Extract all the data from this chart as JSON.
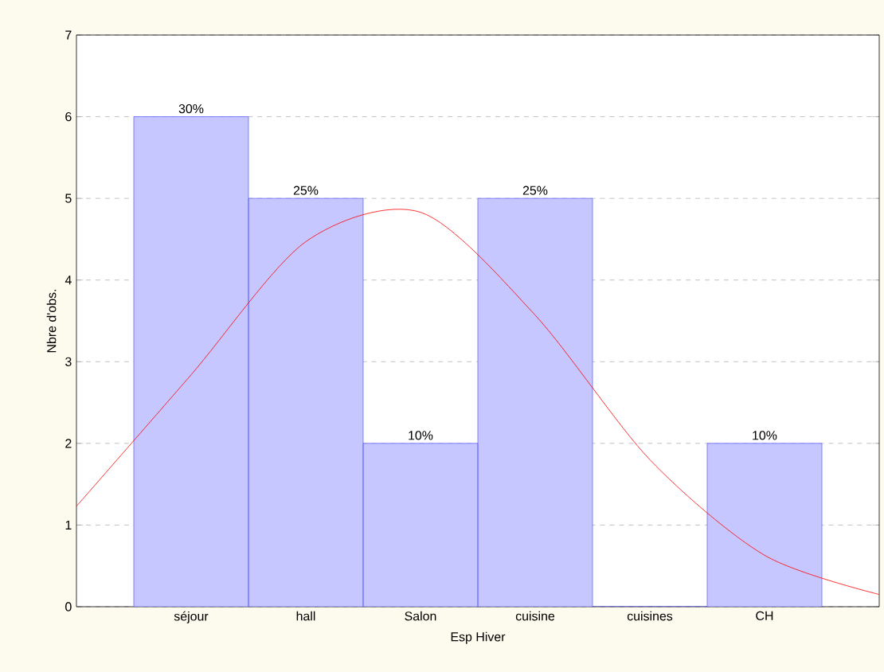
{
  "chart_data": {
    "type": "bar",
    "xlabel": "Esp Hiver",
    "ylabel": "Nbre d'obs.",
    "categories": [
      null,
      "séjour",
      "hall",
      "Salon",
      "cuisine",
      "cuisines",
      "CH",
      null
    ],
    "ylim": [
      0,
      7
    ],
    "yticks": [
      0,
      1,
      2,
      3,
      4,
      5,
      6,
      7
    ],
    "grid": "y",
    "annotations": [
      {
        "text": "30%",
        "x": "séjour",
        "y": 6
      },
      {
        "text": "25%",
        "x": "hall",
        "y": 5
      },
      {
        "text": "10%",
        "x": "Salon",
        "y": 2
      },
      {
        "text": "25%",
        "x": "cuisine",
        "y": 5
      },
      {
        "text": "10%",
        "x": "CH",
        "y": 2
      }
    ],
    "series": [
      {
        "color": "#c7c7ff",
        "values": [
          null,
          6,
          5,
          2,
          5,
          0,
          2,
          null
        ]
      },
      {
        "type": "line",
        "color": "#ff0000",
        "marker": "none",
        "values": [
          1.23,
          2.84,
          4.47,
          4.83,
          3.57,
          1.8,
          0.63,
          0.15
        ]
      }
    ]
  }
}
